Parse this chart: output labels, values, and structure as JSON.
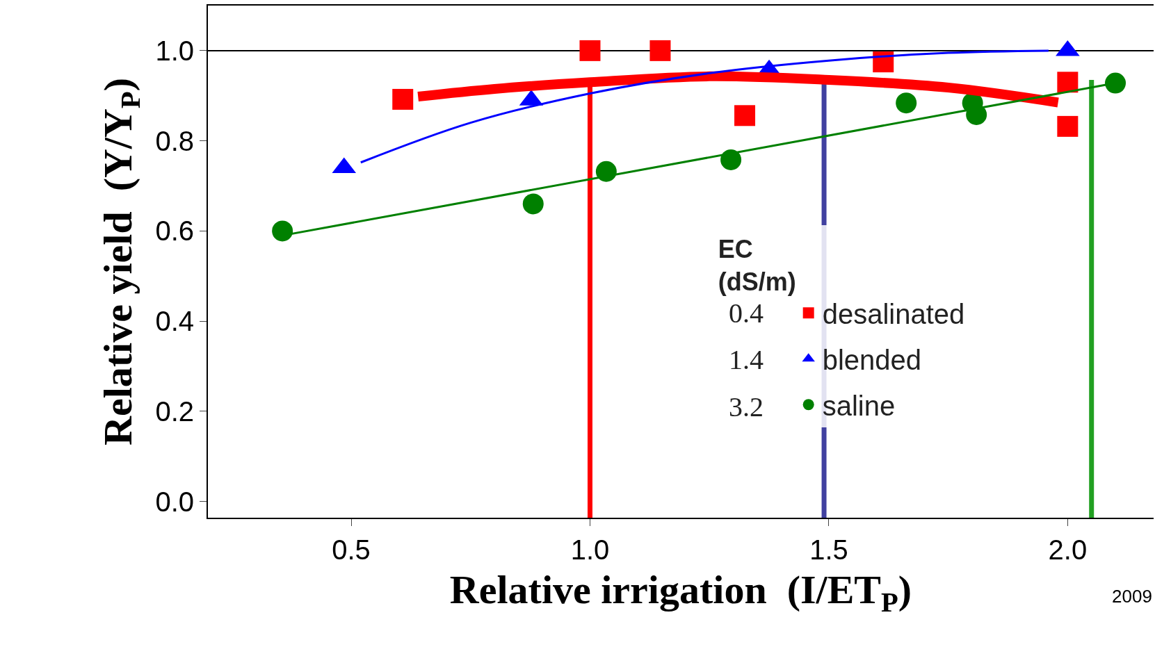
{
  "chart_data": {
    "type": "scatter",
    "xlabel": "Relative irrigation  (I/ET$_{P}$)",
    "ylabel": "Relative yield  (Y/Y$_{P}$)",
    "legend_title": "EC\n(dS/m)",
    "legend": "center",
    "grid": false,
    "xlim": [
      0.2,
      2.18
    ],
    "ylim": [
      -0.036,
      1.1
    ],
    "xticks": [
      0.5,
      {
        "value": 1.0,
        "label": "1.0"
      },
      1.5,
      {
        "value": 2.0,
        "label": "2.0"
      }
    ],
    "yticks": [
      {
        "value": 0.0,
        "label": "0.0"
      },
      0.2,
      0.4,
      0.6,
      0.8,
      {
        "value": 1.0,
        "label": "1.0"
      }
    ],
    "series": [
      {
        "name": "desalinated",
        "color": "#ff0000",
        "marker": "square",
        "x": [
          0.608,
          1.0,
          1.147,
          1.324,
          1.614,
          2.0,
          2.0
        ],
        "values": [
          0.892,
          1.0,
          1.0,
          0.856,
          0.975,
          0.93,
          0.832
        ]
      },
      {
        "name": "blended",
        "color": "#0000ff",
        "marker": "triangle",
        "x": [
          0.485,
          0.877,
          1.375,
          2.0
        ],
        "values": [
          0.74,
          0.89,
          0.957,
          1.0
        ]
      },
      {
        "name": "saline",
        "color": "#008000",
        "marker": "circle",
        "x": [
          0.356,
          0.881,
          1.034,
          1.295,
          1.662,
          1.801,
          1.809,
          2.1
        ],
        "values": [
          0.6,
          0.66,
          0.732,
          0.758,
          0.884,
          0.884,
          0.858,
          0.928
        ]
      },
      {
        "type": "line",
        "color": "#ff0000",
        "x": [
          0.64,
          0.8,
          1.0,
          1.25,
          1.5,
          1.75,
          1.98
        ],
        "values": [
          0.898,
          0.915,
          0.93,
          0.943,
          0.935,
          0.918,
          0.885
        ]
      },
      {
        "type": "line",
        "color": "#0000ff",
        "x": [
          0.52,
          0.75,
          1.0,
          1.25,
          1.5,
          1.75,
          1.96
        ],
        "values": [
          0.752,
          0.84,
          0.905,
          0.95,
          0.978,
          0.995,
          1.0
        ]
      },
      {
        "type": "line",
        "color": "#008000",
        "x": [
          0.356,
          2.1
        ],
        "values": [
          0.59,
          0.928
        ]
      }
    ],
    "ref_lines": [
      {
        "axis": "y",
        "value": 1.0,
        "color": "#000000"
      },
      {
        "axis": "x",
        "value": 1.0,
        "color": "#ff0000"
      },
      {
        "axis": "x",
        "value": 1.49,
        "color": "#4040a0"
      },
      {
        "axis": "x",
        "value": 2.05,
        "color": "#22a022"
      }
    ],
    "annotations": [
      "0.4",
      "1.4",
      "3.2",
      "2009"
    ]
  }
}
